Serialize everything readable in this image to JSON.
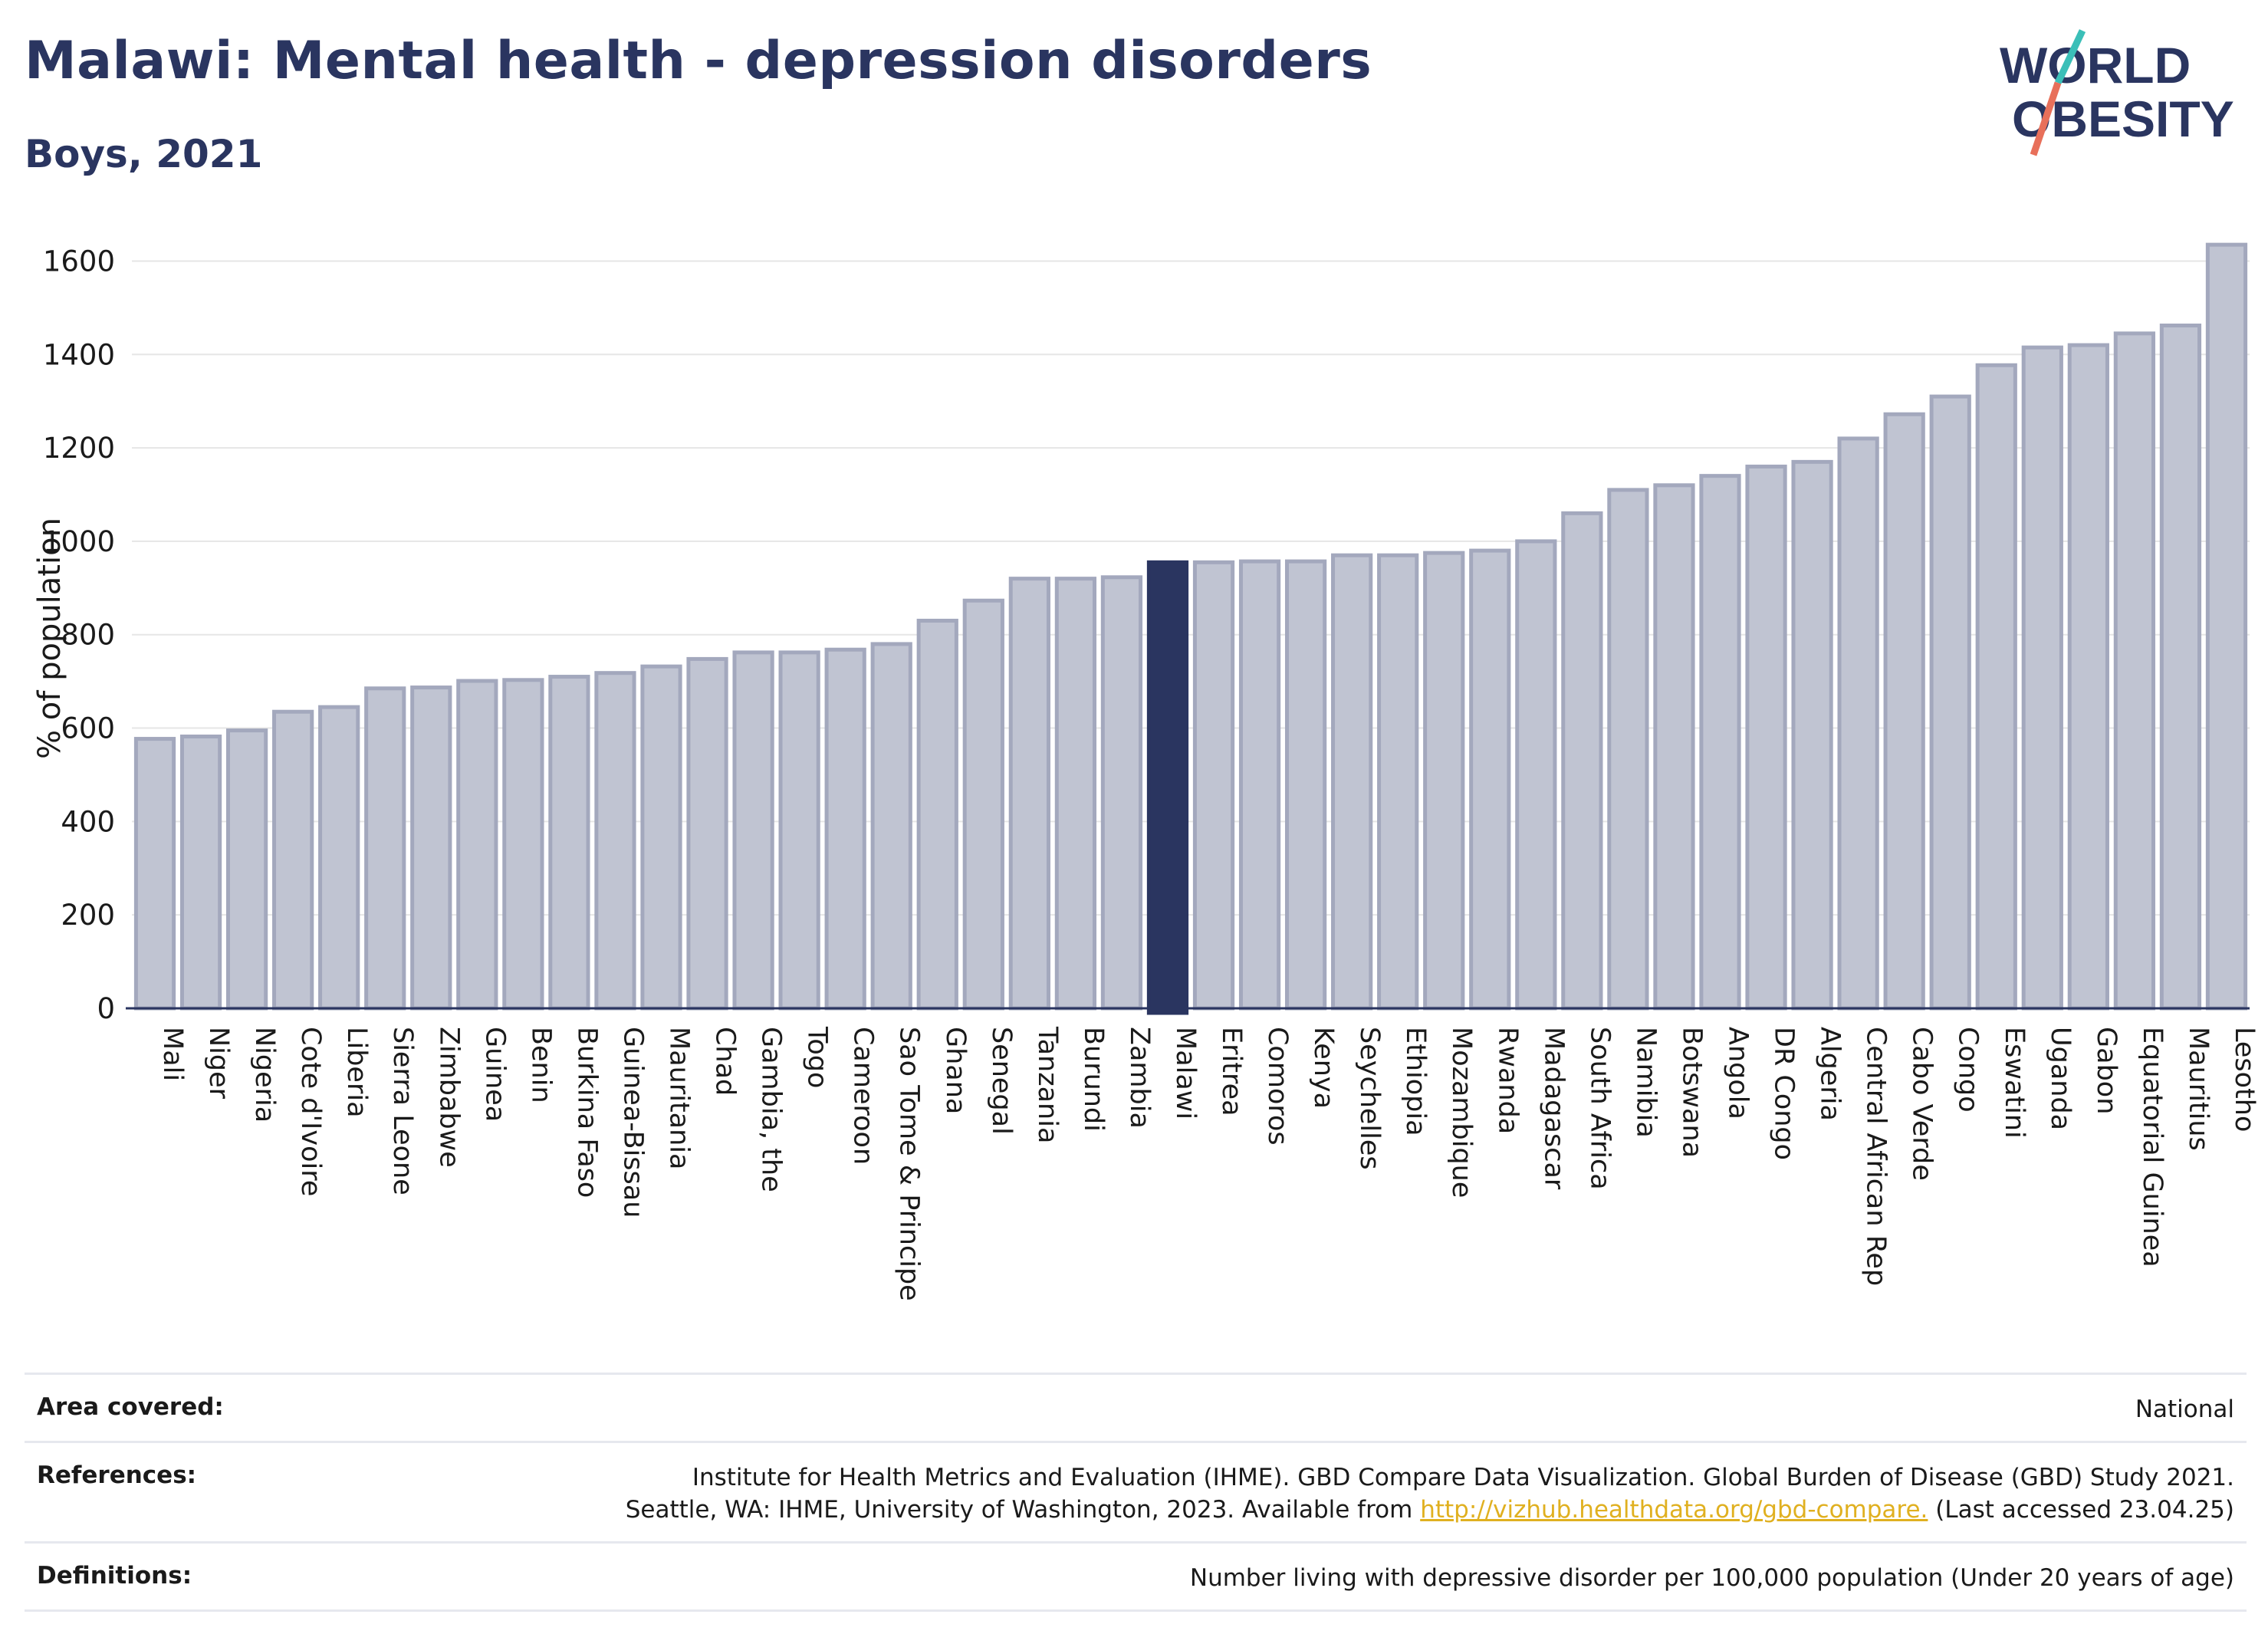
{
  "header": {
    "title": "Malawi: Mental health - depression disorders",
    "subtitle": "Boys, 2021"
  },
  "logo": {
    "line1": "WORLD",
    "line2": "OBESITY"
  },
  "colors": {
    "bar": "#c0c4d2",
    "bar_stroke": "#a3a8bd",
    "highlight": "#2a3560",
    "text": "#2a3560",
    "grid": "#e6e6e6"
  },
  "chart_data": {
    "type": "bar",
    "ylabel": "% of population",
    "ylim": [
      0,
      1650
    ],
    "yticks": [
      0,
      200,
      400,
      600,
      800,
      1000,
      1200,
      1400,
      1600
    ],
    "highlight": "Malawi",
    "categories": [
      "Mali",
      "Niger",
      "Nigeria",
      "Cote d'Ivoire",
      "Liberia",
      "Sierra Leone",
      "Zimbabwe",
      "Guinea",
      "Benin",
      "Burkina Faso",
      "Guinea-Bissau",
      "Mauritania",
      "Chad",
      "Gambia, the",
      "Togo",
      "Cameroon",
      "Sao Tome & Principe",
      "Ghana",
      "Senegal",
      "Tanzania",
      "Burundi",
      "Zambia",
      "Malawi",
      "Eritrea",
      "Comoros",
      "Kenya",
      "Seychelles",
      "Ethiopia",
      "Mozambique",
      "Rwanda",
      "Madagascar",
      "South Africa",
      "Namibia",
      "Botswana",
      "Angola",
      "DR Congo",
      "Algeria",
      "Central African Rep",
      "Cabo Verde",
      "Congo",
      "Eswatini",
      "Uganda",
      "Gabon",
      "Equatorial Guinea",
      "Mauritius",
      "Lesotho"
    ],
    "values": [
      577,
      582,
      595,
      635,
      645,
      685,
      687,
      701,
      703,
      710,
      718,
      732,
      748,
      762,
      762,
      768,
      780,
      830,
      873,
      920,
      920,
      923,
      955,
      955,
      957,
      957,
      970,
      970,
      975,
      980,
      1000,
      1060,
      1110,
      1120,
      1140,
      1160,
      1170,
      1220,
      1272,
      1310,
      1377,
      1415,
      1420,
      1445,
      1462,
      1635
    ]
  },
  "footer": {
    "area_label": "Area covered:",
    "area_value": "National",
    "ref_label": "References:",
    "ref_line1": "Institute for Health Metrics and Evaluation (IHME). GBD Compare Data Visualization. Global Burden of Disease (GBD) Study 2021.",
    "ref_line2_pre": "Seattle, WA: IHME, University of Washington, 2023. Available from ",
    "ref_link": "http://vizhub.healthdata.org/gbd-compare.",
    "ref_line2_post": " (Last accessed 23.04.25)",
    "def_label": "Definitions:",
    "def_value": "Number living with depressive disorder per 100,000 population (Under 20 years of age)"
  }
}
